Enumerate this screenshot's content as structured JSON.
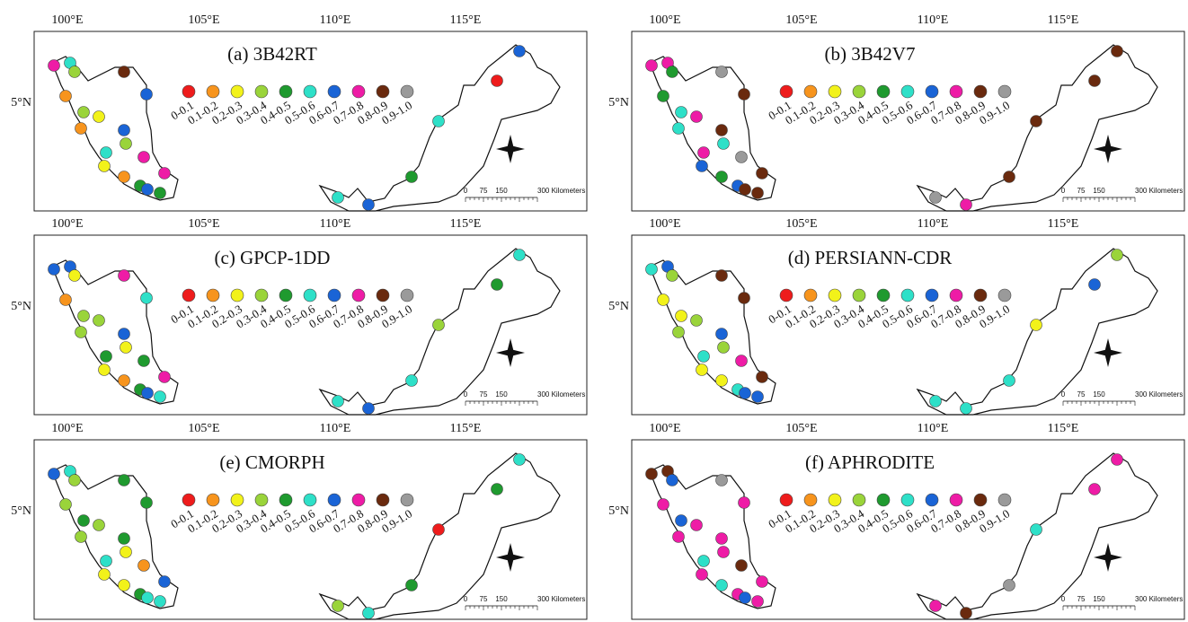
{
  "axis_labels": {
    "x": [
      "100°E",
      "105°E",
      "110°E",
      "115°E"
    ],
    "y": "5°N"
  },
  "legend": {
    "labels": [
      "0-0.1",
      "0.1-0.2",
      "0.2-0.3",
      "0.3-0.4",
      "0.4-0.5",
      "0.5-0.6",
      "0.6-0.7",
      "0.7-0.8",
      "0.8-0.9",
      "0.9-1.0"
    ],
    "colors": [
      "#ee1c1c",
      "#f7941d",
      "#f2f21a",
      "#9ad43a",
      "#1f9a2f",
      "#2ee0c8",
      "#1a64d6",
      "#ee1ca6",
      "#6a2a0e",
      "#9a9a9a"
    ]
  },
  "scale_bar": {
    "ticks": [
      "0",
      "75",
      "150",
      "300 Kilometers"
    ]
  },
  "panels": [
    {
      "title": "(a) 3B42RT",
      "stations": [
        7,
        5,
        3,
        8,
        1,
        6,
        3,
        2,
        1,
        6,
        5,
        3,
        7,
        2,
        1,
        7,
        4,
        4,
        6,
        5,
        6,
        4,
        5,
        0,
        6
      ]
    },
    {
      "title": "(b) 3B42V7",
      "stations": [
        7,
        7,
        4,
        9,
        4,
        8,
        5,
        7,
        5,
        8,
        7,
        5,
        9,
        6,
        4,
        8,
        6,
        8,
        8,
        9,
        7,
        8,
        8,
        8,
        8
      ]
    },
    {
      "title": "(c) GPCP-1DD",
      "stations": [
        6,
        6,
        2,
        7,
        1,
        5,
        3,
        3,
        3,
        6,
        4,
        2,
        4,
        2,
        1,
        7,
        4,
        5,
        6,
        5,
        6,
        5,
        3,
        4,
        5
      ]
    },
    {
      "title": "(d) PERSIANN-CDR",
      "stations": [
        5,
        6,
        3,
        8,
        2,
        8,
        2,
        3,
        3,
        6,
        5,
        3,
        7,
        2,
        2,
        8,
        5,
        6,
        6,
        5,
        5,
        5,
        2,
        6,
        3
      ]
    },
    {
      "title": "(e) CMORPH",
      "stations": [
        6,
        5,
        3,
        4,
        3,
        4,
        4,
        3,
        3,
        4,
        5,
        2,
        1,
        2,
        2,
        6,
        4,
        5,
        5,
        3,
        5,
        4,
        0,
        4,
        5
      ]
    },
    {
      "title": "(f) APHRODITE",
      "stations": [
        8,
        8,
        6,
        9,
        7,
        7,
        6,
        7,
        7,
        7,
        5,
        7,
        8,
        7,
        5,
        7,
        7,
        7,
        6,
        7,
        8,
        9,
        5,
        7,
        7
      ]
    }
  ]
}
